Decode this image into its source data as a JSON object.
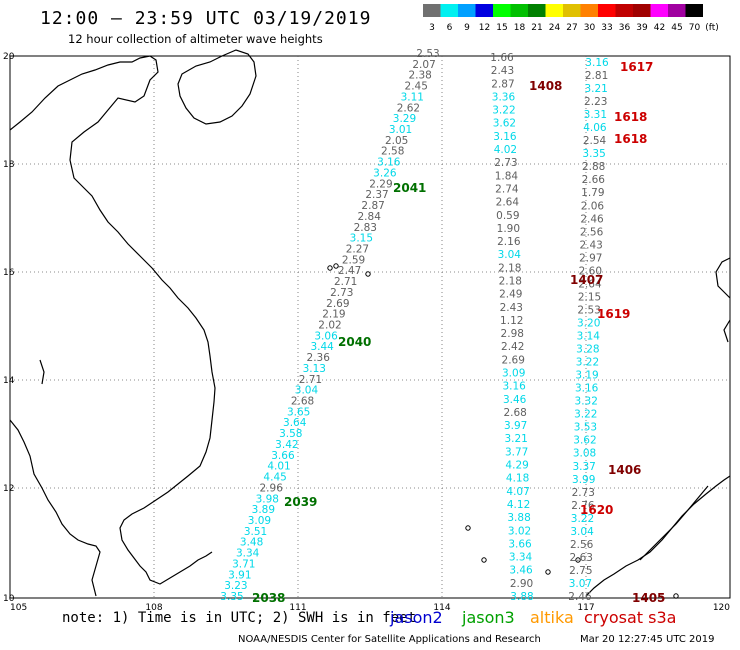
{
  "header": {
    "title": "12:00 – 23:59 UTC 03/19/2019",
    "subtitle": "12 hour collection of altimeter wave heights"
  },
  "scale": {
    "labels": [
      "3",
      "6",
      "9",
      "12",
      "15",
      "18",
      "21",
      "24",
      "27",
      "30",
      "33",
      "36",
      "39",
      "42",
      "45",
      "70",
      "(ft)"
    ],
    "colors": [
      "#707070",
      "#00f0f0",
      "#00a0ff",
      "#0000e0",
      "#00ff00",
      "#00c000",
      "#008000",
      "#ffff00",
      "#e0c000",
      "#ff8000",
      "#ff0000",
      "#c00000",
      "#a00000",
      "#ff00ff",
      "#a000a0",
      "#000000"
    ]
  },
  "axes": {
    "x_ticks": [
      "105",
      "108",
      "111",
      "114",
      "117",
      "120"
    ],
    "y_ticks": [
      "20",
      "18",
      "16",
      "14",
      "12",
      "10"
    ]
  },
  "colors": {
    "swh_low": "#00d8e8",
    "swh_mid": "#606060",
    "time_jason3": "#007000",
    "time_jason2": "#0000d0",
    "time_cryosat": "#cc0000",
    "time_altika": "#800000",
    "coast": "#000000"
  },
  "tracks": [
    {
      "name": "track-a",
      "points": [
        [
          "2.53",
          "#606060"
        ],
        [
          "2.07",
          "#606060"
        ],
        [
          "2.38",
          "#606060"
        ],
        [
          "2.45",
          "#606060"
        ],
        [
          "3.11",
          "#00d8e8"
        ],
        [
          "2.62",
          "#606060"
        ],
        [
          "3.29",
          "#00d8e8"
        ],
        [
          "3.01",
          "#00d8e8"
        ],
        [
          "2.05",
          "#606060"
        ],
        [
          "2.58",
          "#606060"
        ],
        [
          "3.16",
          "#00d8e8"
        ],
        [
          "3.26",
          "#00d8e8"
        ],
        [
          "2.29",
          "#606060"
        ],
        [
          "2.37",
          "#606060"
        ],
        [
          "2.87",
          "#606060"
        ],
        [
          "2.84",
          "#606060"
        ],
        [
          "2.83",
          "#606060"
        ],
        [
          "3.15",
          "#00d8e8"
        ],
        [
          "2.27",
          "#606060"
        ],
        [
          "2.59",
          "#606060"
        ],
        [
          "2.47",
          "#606060"
        ],
        [
          "2.71",
          "#606060"
        ],
        [
          "2.73",
          "#606060"
        ],
        [
          "2.69",
          "#606060"
        ],
        [
          "2.19",
          "#606060"
        ],
        [
          "2.02",
          "#606060"
        ],
        [
          "3.06",
          "#00d8e8"
        ],
        [
          "3.44",
          "#00d8e8"
        ],
        [
          "2.36",
          "#606060"
        ],
        [
          "3.13",
          "#00d8e8"
        ],
        [
          "2.71",
          "#606060"
        ],
        [
          "3.04",
          "#00d8e8"
        ],
        [
          "2.68",
          "#606060"
        ],
        [
          "3.65",
          "#00d8e8"
        ],
        [
          "3.64",
          "#00d8e8"
        ],
        [
          "3.58",
          "#00d8e8"
        ],
        [
          "3.42",
          "#00d8e8"
        ],
        [
          "3.66",
          "#00d8e8"
        ],
        [
          "4.01",
          "#00d8e8"
        ],
        [
          "4.45",
          "#00d8e8"
        ],
        [
          "2.96",
          "#606060"
        ],
        [
          "3.98",
          "#00d8e8"
        ],
        [
          "3.89",
          "#00d8e8"
        ],
        [
          "3.09",
          "#00d8e8"
        ],
        [
          "3.51",
          "#00d8e8"
        ],
        [
          "3.48",
          "#00d8e8"
        ],
        [
          "3.34",
          "#00d8e8"
        ],
        [
          "3.71",
          "#00d8e8"
        ],
        [
          "3.91",
          "#00d8e8"
        ],
        [
          "3.23",
          "#00d8e8"
        ],
        [
          "3.35",
          "#00d8e8"
        ]
      ]
    },
    {
      "name": "track-b",
      "points": [
        [
          "1.66",
          "#606060"
        ],
        [
          "2.43",
          "#606060"
        ],
        [
          "2.87",
          "#606060"
        ],
        [
          "3.36",
          "#00d8e8"
        ],
        [
          "3.22",
          "#00d8e8"
        ],
        [
          "3.62",
          "#00d8e8"
        ],
        [
          "3.16",
          "#00d8e8"
        ],
        [
          "4.02",
          "#00d8e8"
        ],
        [
          "2.73",
          "#606060"
        ],
        [
          "1.84",
          "#606060"
        ],
        [
          "2.74",
          "#606060"
        ],
        [
          "2.64",
          "#606060"
        ],
        [
          "0.59",
          "#606060"
        ],
        [
          "1.90",
          "#606060"
        ],
        [
          "2.16",
          "#606060"
        ],
        [
          "3.04",
          "#00d8e8"
        ],
        [
          "2.18",
          "#606060"
        ],
        [
          "2.18",
          "#606060"
        ],
        [
          "2.49",
          "#606060"
        ],
        [
          "2.43",
          "#606060"
        ],
        [
          "1.12",
          "#606060"
        ],
        [
          "2.98",
          "#606060"
        ],
        [
          "2.42",
          "#606060"
        ],
        [
          "2.69",
          "#606060"
        ],
        [
          "3.09",
          "#00d8e8"
        ],
        [
          "3.16",
          "#00d8e8"
        ],
        [
          "3.46",
          "#00d8e8"
        ],
        [
          "2.68",
          "#606060"
        ],
        [
          "3.97",
          "#00d8e8"
        ],
        [
          "3.21",
          "#00d8e8"
        ],
        [
          "3.77",
          "#00d8e8"
        ],
        [
          "4.29",
          "#00d8e8"
        ],
        [
          "4.18",
          "#00d8e8"
        ],
        [
          "4.07",
          "#00d8e8"
        ],
        [
          "4.12",
          "#00d8e8"
        ],
        [
          "3.88",
          "#00d8e8"
        ],
        [
          "3.02",
          "#00d8e8"
        ],
        [
          "3.66",
          "#00d8e8"
        ],
        [
          "3.34",
          "#00d8e8"
        ],
        [
          "3.46",
          "#00d8e8"
        ],
        [
          "2.90",
          "#606060"
        ],
        [
          "3.88",
          "#00d8e8"
        ]
      ]
    },
    {
      "name": "track-c",
      "points": [
        [
          "3.16",
          "#00d8e8"
        ],
        [
          "2.81",
          "#606060"
        ],
        [
          "3.21",
          "#00d8e8"
        ],
        [
          "2.23",
          "#606060"
        ],
        [
          "3.31",
          "#00d8e8"
        ],
        [
          "4.06",
          "#00d8e8"
        ],
        [
          "2.54",
          "#606060"
        ],
        [
          "3.35",
          "#00d8e8"
        ],
        [
          "2.88",
          "#606060"
        ],
        [
          "2.66",
          "#606060"
        ],
        [
          "1.79",
          "#606060"
        ],
        [
          "2.06",
          "#606060"
        ],
        [
          "2.46",
          "#606060"
        ],
        [
          "2.56",
          "#606060"
        ],
        [
          "2.43",
          "#606060"
        ],
        [
          "2.97",
          "#606060"
        ],
        [
          "2.60",
          "#606060"
        ],
        [
          "2.64",
          "#606060"
        ],
        [
          "2.15",
          "#606060"
        ],
        [
          "2.53",
          "#606060"
        ],
        [
          "3.20",
          "#00d8e8"
        ],
        [
          "3.14",
          "#00d8e8"
        ],
        [
          "3.28",
          "#00d8e8"
        ],
        [
          "3.22",
          "#00d8e8"
        ],
        [
          "3.19",
          "#00d8e8"
        ],
        [
          "3.16",
          "#00d8e8"
        ],
        [
          "3.32",
          "#00d8e8"
        ],
        [
          "3.22",
          "#00d8e8"
        ],
        [
          "3.53",
          "#00d8e8"
        ],
        [
          "3.62",
          "#00d8e8"
        ],
        [
          "3.08",
          "#00d8e8"
        ],
        [
          "3.37",
          "#00d8e8"
        ],
        [
          "3.99",
          "#00d8e8"
        ],
        [
          "2.73",
          "#606060"
        ],
        [
          "2.76",
          "#606060"
        ],
        [
          "3.22",
          "#00d8e8"
        ],
        [
          "3.04",
          "#00d8e8"
        ],
        [
          "2.56",
          "#606060"
        ],
        [
          "2.63",
          "#606060"
        ],
        [
          "2.75",
          "#606060"
        ],
        [
          "3.07",
          "#00d8e8"
        ],
        [
          "2.46",
          "#606060"
        ]
      ]
    }
  ],
  "time_labels": [
    {
      "text": "1617",
      "color": "#cc0000"
    },
    {
      "text": "1408",
      "color": "#800000"
    },
    {
      "text": "1618",
      "color": "#cc0000"
    },
    {
      "text": "1618",
      "color": "#cc0000"
    },
    {
      "text": "2041",
      "color": "#007000"
    },
    {
      "text": "1407",
      "color": "#800000"
    },
    {
      "text": "1619",
      "color": "#cc0000"
    },
    {
      "text": "2040",
      "color": "#007000"
    },
    {
      "text": "1406",
      "color": "#800000"
    },
    {
      "text": "2039",
      "color": "#007000"
    },
    {
      "text": "1620",
      "color": "#cc0000"
    },
    {
      "text": "2038",
      "color": "#007000"
    },
    {
      "text": "1405",
      "color": "#800000"
    }
  ],
  "footer": {
    "note": "note: 1) Time is in UTC; 2) SWH is in feet",
    "legend": [
      {
        "label": "jason2",
        "color": "#0000d0"
      },
      {
        "label": "jason3",
        "color": "#00a000"
      },
      {
        "label": "altika",
        "color": "#ff9900"
      },
      {
        "label": "cryosat s3a",
        "color": "#cc0000"
      }
    ],
    "credit": "NOAA/NESDIS Center for Satellite Applications and Research",
    "timestamp": "Mar 20 12:27:45 UTC 2019"
  }
}
